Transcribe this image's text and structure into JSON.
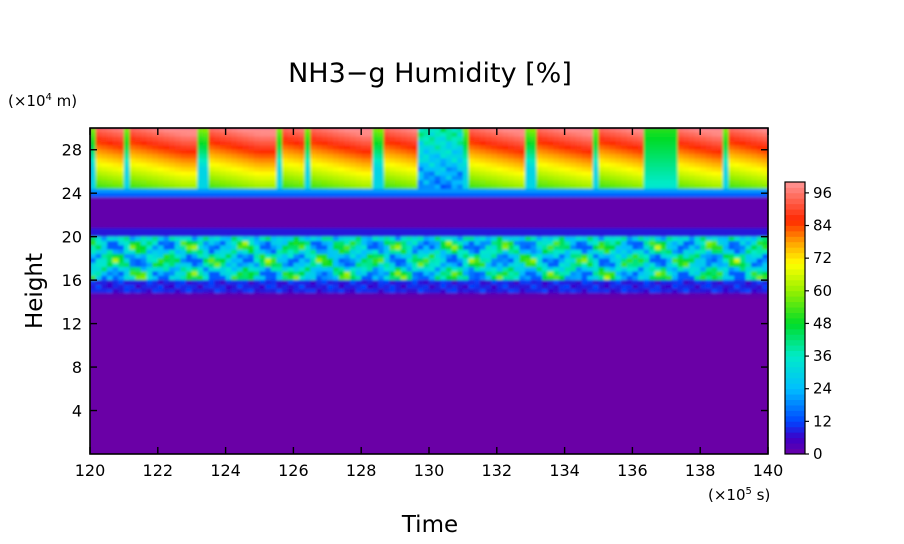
{
  "chart_data": {
    "type": "heatmap",
    "title": "NH3−g Humidity [%]",
    "xlabel": "Time",
    "ylabel": "Height",
    "x_unit": "(×10",
    "x_unit_exp": "5",
    "x_unit_tail": " s)",
    "y_unit": "(×10",
    "y_unit_exp": "4",
    "y_unit_tail": " m)",
    "xlim": [
      120,
      140
    ],
    "ylim": [
      0,
      30
    ],
    "x_ticks": [
      120,
      122,
      124,
      126,
      128,
      130,
      132,
      134,
      136,
      138,
      140
    ],
    "y_ticks": [
      4,
      8,
      12,
      16,
      20,
      24,
      28
    ],
    "colorbar": {
      "range": [
        0,
        100
      ],
      "ticks": [
        0,
        12,
        24,
        36,
        48,
        60,
        72,
        84,
        96
      ]
    },
    "layers": [
      {
        "from": 0,
        "to": 15,
        "value": 1
      },
      {
        "from": 15,
        "to": 16,
        "value": 10
      },
      {
        "from": 16,
        "to": 20,
        "value": 40
      },
      {
        "from": 20,
        "to": 21,
        "value": 8
      },
      {
        "from": 21,
        "to": 23.5,
        "value": 1
      },
      {
        "from": 23.5,
        "to": 24.5,
        "value": 10
      },
      {
        "from": 24.5,
        "to": 30,
        "value": 80
      }
    ],
    "grid": false,
    "legend": "colorbar-right"
  }
}
